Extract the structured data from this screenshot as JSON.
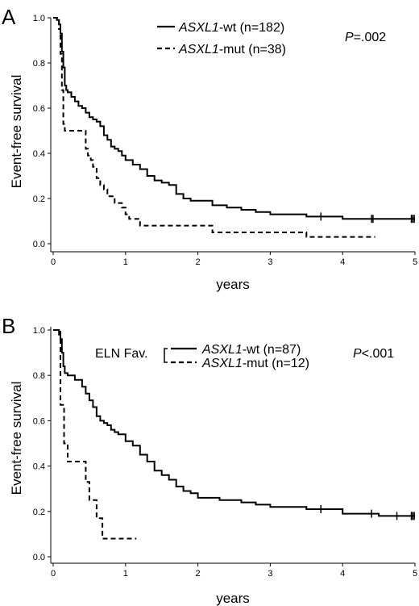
{
  "chart_data": [
    {
      "panel": "A",
      "type": "line",
      "xlabel": "years",
      "ylabel": "Event-free survival",
      "xlim": [
        0,
        5
      ],
      "ylim": [
        0,
        1
      ],
      "xticks": [
        "0",
        "1",
        "2",
        "3",
        "4",
        "5"
      ],
      "yticks": [
        "0.0",
        "0.2",
        "0.4",
        "0.6",
        "0.8",
        "1.0"
      ],
      "grid": false,
      "legend_position": "top-right",
      "pvalue": {
        "italic": "P",
        "rest": "=.002"
      },
      "series": [
        {
          "name_italic": "ASXL1",
          "name_rest": "-wt (n=182)",
          "style": "solid",
          "x": [
            0,
            0.05,
            0.08,
            0.1,
            0.12,
            0.14,
            0.16,
            0.18,
            0.2,
            0.25,
            0.3,
            0.35,
            0.4,
            0.45,
            0.5,
            0.55,
            0.6,
            0.65,
            0.7,
            0.75,
            0.8,
            0.85,
            0.9,
            0.95,
            1.0,
            1.1,
            1.2,
            1.3,
            1.4,
            1.5,
            1.6,
            1.7,
            1.8,
            1.9,
            2.0,
            2.2,
            2.4,
            2.6,
            2.8,
            3.0,
            3.5,
            4.0,
            4.5,
            5.0
          ],
          "y": [
            1.0,
            0.99,
            0.97,
            0.93,
            0.85,
            0.78,
            0.7,
            0.68,
            0.67,
            0.65,
            0.63,
            0.61,
            0.6,
            0.58,
            0.56,
            0.55,
            0.54,
            0.52,
            0.48,
            0.46,
            0.43,
            0.42,
            0.41,
            0.39,
            0.37,
            0.35,
            0.33,
            0.3,
            0.28,
            0.27,
            0.26,
            0.22,
            0.2,
            0.19,
            0.19,
            0.17,
            0.16,
            0.15,
            0.14,
            0.13,
            0.12,
            0.11,
            0.11,
            0.11
          ],
          "censor_x": [
            3.7,
            4.4,
            4.42,
            4.95,
            4.97,
            4.99
          ]
        },
        {
          "name_italic": "ASXL1",
          "name_rest": "-mut (n=38)",
          "style": "dashed",
          "x": [
            0,
            0.08,
            0.1,
            0.12,
            0.14,
            0.16,
            0.3,
            0.45,
            0.48,
            0.52,
            0.55,
            0.6,
            0.65,
            0.7,
            0.75,
            0.85,
            0.95,
            1.0,
            1.05,
            1.2,
            1.4,
            2.2,
            3.5,
            4.45
          ],
          "y": [
            1.0,
            0.95,
            0.84,
            0.68,
            0.53,
            0.5,
            0.5,
            0.42,
            0.39,
            0.37,
            0.34,
            0.29,
            0.26,
            0.24,
            0.21,
            0.18,
            0.16,
            0.13,
            0.11,
            0.08,
            0.08,
            0.05,
            0.03,
            0.03
          ],
          "censor_x": []
        }
      ]
    },
    {
      "panel": "B",
      "type": "line",
      "xlabel": "years",
      "ylabel": "Event-free survival",
      "xlim": [
        0,
        5
      ],
      "ylim": [
        0,
        1
      ],
      "xticks": [
        "0",
        "1",
        "2",
        "3",
        "4",
        "5"
      ],
      "yticks": [
        "0.0",
        "0.2",
        "0.4",
        "0.6",
        "0.8",
        "1.0"
      ],
      "grid": false,
      "legend_position": "top-right",
      "group_label": "ELN Fav.",
      "pvalue": {
        "italic": "P",
        "rest": "<.001"
      },
      "series": [
        {
          "name_italic": "ASXL1",
          "name_rest": "-wt (n=87)",
          "style": "solid",
          "x": [
            0,
            0.08,
            0.1,
            0.12,
            0.14,
            0.16,
            0.2,
            0.3,
            0.4,
            0.45,
            0.5,
            0.55,
            0.6,
            0.65,
            0.7,
            0.75,
            0.8,
            0.85,
            0.9,
            1.0,
            1.1,
            1.2,
            1.3,
            1.4,
            1.5,
            1.6,
            1.7,
            1.8,
            1.9,
            2.0,
            2.3,
            2.6,
            2.8,
            3.0,
            3.5,
            4.0,
            4.5,
            5.0
          ],
          "y": [
            1.0,
            0.98,
            0.96,
            0.9,
            0.84,
            0.81,
            0.8,
            0.78,
            0.75,
            0.72,
            0.69,
            0.66,
            0.62,
            0.6,
            0.59,
            0.58,
            0.56,
            0.55,
            0.54,
            0.51,
            0.49,
            0.45,
            0.42,
            0.38,
            0.36,
            0.34,
            0.31,
            0.29,
            0.28,
            0.26,
            0.25,
            0.24,
            0.23,
            0.22,
            0.21,
            0.19,
            0.18,
            0.18
          ],
          "censor_x": [
            3.7,
            4.4,
            4.75,
            4.95,
            4.97,
            4.99
          ]
        },
        {
          "name_italic": "ASXL1",
          "name_rest": "-mut (n=12)",
          "style": "dashed",
          "x": [
            0,
            0.1,
            0.15,
            0.2,
            0.3,
            0.45,
            0.5,
            0.55,
            0.6,
            0.68,
            0.8,
            1.15
          ],
          "y": [
            1.0,
            0.67,
            0.5,
            0.42,
            0.42,
            0.33,
            0.25,
            0.25,
            0.17,
            0.08,
            0.08,
            0.08
          ],
          "censor_x": []
        }
      ]
    }
  ]
}
